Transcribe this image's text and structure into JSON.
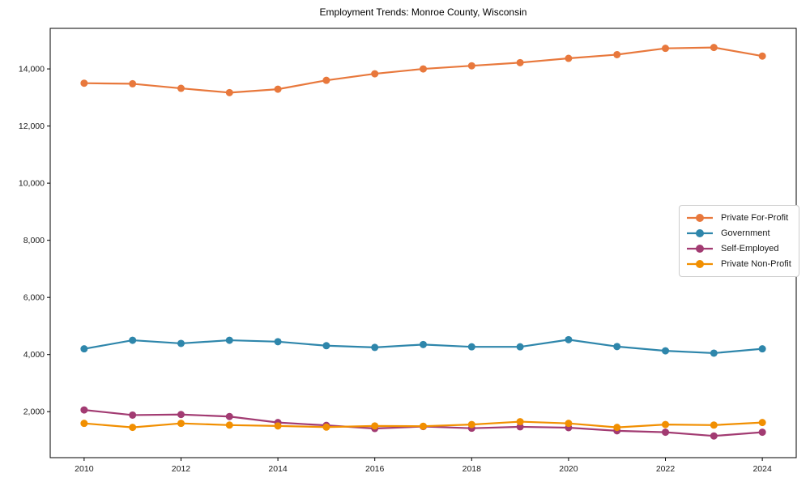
{
  "chart_data": {
    "type": "line",
    "title": "Employment Trends: Monroe County, Wisconsin",
    "xlabel": "",
    "ylabel": "",
    "x": [
      2010,
      2011,
      2012,
      2013,
      2014,
      2015,
      2016,
      2017,
      2018,
      2019,
      2020,
      2021,
      2022,
      2023,
      2024
    ],
    "series": [
      {
        "name": "Private For-Profit",
        "color": "#E8783C",
        "values": [
          13500,
          13480,
          13320,
          13170,
          13290,
          13600,
          13830,
          14000,
          14110,
          14220,
          14370,
          14500,
          14720,
          14750,
          14450
        ]
      },
      {
        "name": "Government",
        "color": "#2E86AB",
        "values": [
          4200,
          4500,
          4390,
          4500,
          4450,
          4310,
          4250,
          4350,
          4270,
          4270,
          4520,
          4280,
          4130,
          4050,
          4200
        ]
      },
      {
        "name": "Self-Employed",
        "color": "#A23B72",
        "values": [
          2060,
          1880,
          1900,
          1830,
          1620,
          1520,
          1410,
          1480,
          1420,
          1470,
          1440,
          1330,
          1280,
          1150,
          1280
        ]
      },
      {
        "name": "Private Non-Profit",
        "color": "#F18F01",
        "values": [
          1590,
          1450,
          1590,
          1530,
          1500,
          1460,
          1500,
          1490,
          1550,
          1650,
          1590,
          1450,
          1550,
          1530,
          1620
        ]
      }
    ],
    "xticks": [
      2010,
      2012,
      2014,
      2016,
      2018,
      2020,
      2022,
      2024
    ],
    "yticks": [
      2000,
      4000,
      6000,
      8000,
      10000,
      12000,
      14000
    ],
    "ytick_labels": [
      "2,000",
      "4,000",
      "6,000",
      "8,000",
      "10,000",
      "12,000",
      "14,000"
    ],
    "xlim": [
      2009.3,
      2024.7
    ],
    "ylim": [
      390,
      15420
    ],
    "grid": false,
    "legend_position": "center right",
    "axis_color": "#000000",
    "tick_label_color": "#1a1a1a"
  }
}
